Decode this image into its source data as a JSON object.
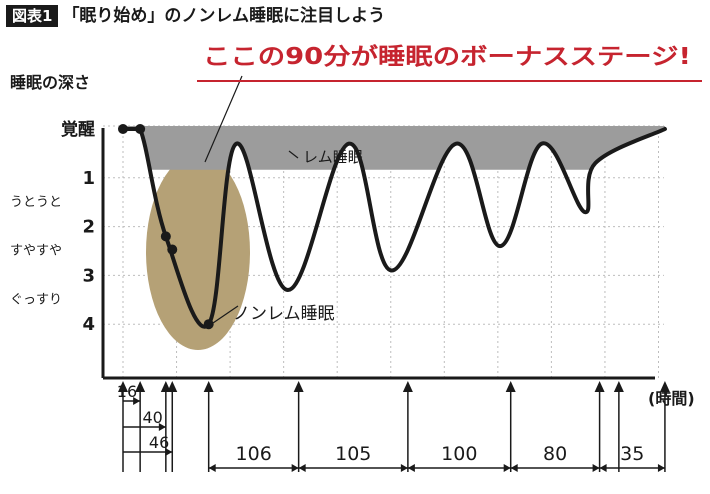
{
  "header": {
    "tag": "図表1",
    "title": "「眠り始め」のノンレム睡眠に注目しよう"
  },
  "chart_data": {
    "type": "line",
    "ylabel": "睡眠の深さ",
    "xlabel": "(時間)",
    "headline": "ここの90分が睡眠のボーナスステージ!",
    "y_levels": [
      {
        "label": "覚醒",
        "value": 0
      },
      {
        "label": "1",
        "value": 1
      },
      {
        "label": "2",
        "value": 2
      },
      {
        "label": "3",
        "value": 3
      },
      {
        "label": "4",
        "value": 4
      }
    ],
    "y_descriptions": [
      "うとうと",
      "すやすや",
      "ぐっすり"
    ],
    "ylim": [
      0,
      5.2
    ],
    "xlim": [
      -2,
      506
    ],
    "grid": true,
    "sleep_curve": [
      [
        0,
        0
      ],
      [
        16,
        0
      ],
      [
        40,
        2.2
      ],
      [
        80,
        4.0
      ],
      [
        106,
        0.3
      ],
      [
        154,
        3.3
      ],
      [
        211,
        0.3
      ],
      [
        251,
        2.9
      ],
      [
        311,
        0.3
      ],
      [
        352,
        2.4
      ],
      [
        391,
        0.3
      ],
      [
        431,
        1.7
      ],
      [
        441,
        0.7
      ],
      [
        506,
        0
      ]
    ],
    "highlighted_points_min": [
      0,
      16,
      40,
      46,
      80
    ],
    "annotations": {
      "rem": "レム睡眠",
      "nonrem": "ノンレム睡眠"
    },
    "intervals": [
      {
        "label": "16",
        "start": 0,
        "end": 16
      },
      {
        "label": "40",
        "start": 0,
        "end": 40
      },
      {
        "label": "46",
        "start": 0,
        "end": 46
      }
    ],
    "cycles": [
      {
        "label": "106",
        "minutes": 106
      },
      {
        "label": "105",
        "minutes": 105
      },
      {
        "label": "100",
        "minutes": 100
      },
      {
        "label": "80",
        "minutes": 80
      },
      {
        "label": "35",
        "minutes": 35
      }
    ],
    "colors": {
      "highlight": "#b5a176",
      "rem_fill": "#9c9c9c",
      "headline": "#c6242f",
      "line": "#1a1a1a",
      "grid": "#bdbdbd"
    }
  }
}
